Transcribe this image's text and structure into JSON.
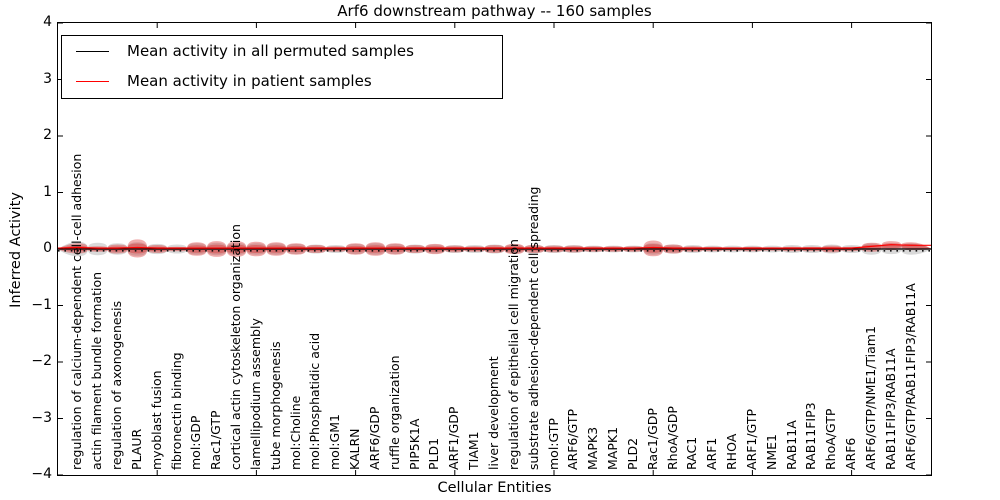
{
  "figure": {
    "title": "Arf6 downstream pathway -- 160 samples",
    "background": "#ffffff"
  },
  "legend": {
    "entries": [
      {
        "label": "Mean activity in all permuted samples",
        "color": "#000000"
      },
      {
        "label": "Mean activity in patient samples",
        "color": "#ff0000"
      }
    ]
  },
  "axes": {
    "y_title": "Inferred Activity",
    "x_title": "Cellular Entities",
    "y_tick_labels": [
      "4",
      "3",
      "2",
      "1",
      "0",
      "−1",
      "−2",
      "−3",
      "−4"
    ],
    "y_tick_values": [
      4,
      3,
      2,
      1,
      0,
      -1,
      -2,
      -3,
      -4
    ]
  },
  "chart_data": {
    "type": "violin",
    "title": "Arf6 downstream pathway -- 160 samples",
    "xlabel": "Cellular Entities",
    "ylabel": "Inferred Activity",
    "ylim": [
      -4,
      4
    ],
    "xlim": [
      0,
      44
    ],
    "grid": false,
    "legend_position": "upper left",
    "x_major_tick_positions": [
      5,
      10,
      15,
      20,
      25,
      30,
      35,
      40
    ],
    "categories": [
      "regulation of calcium-dependent cell-cell adhesion",
      "actin filament bundle formation",
      "regulation of axonogenesis",
      "PLAUR",
      "myoblast fusion",
      "fibronectin binding",
      "mol:GDP",
      "Rac1/GTP",
      "cortical actin cytoskeleton organization",
      "lamellipodium assembly",
      "tube morphogenesis",
      "mol:Choline",
      "mol:Phosphatidic acid",
      "mol:GM1",
      "KALRN",
      "ARF6/GDP",
      "ruffle organization",
      "PIP5K1A",
      "PLD1",
      "ARF1/GDP",
      "TIAM1",
      "liver development",
      "regulation of epithelial cell migration",
      "substrate adhesion-dependent cell spreading",
      "mol:GTP",
      "ARF6/GTP",
      "MAPK3",
      "MAPK1",
      "PLD2",
      "Rac1/GDP",
      "RhoA/GDP",
      "RAC1",
      "ARF1",
      "RHOA",
      "ARF1/GTP",
      "NME1",
      "RAB11A",
      "RAB11FIP3",
      "RhoA/GTP",
      "ARF6",
      "ARF6/GTP/NME1/Tiam1",
      "RAB11FIP3/RAB11A",
      "ARF6/GTP/RAB11FIP3/RAB11A"
    ],
    "series": [
      {
        "name": "Mean activity in all permuted samples",
        "color": "#000000",
        "style": "solid+dotted",
        "values": [
          0,
          0,
          0,
          0,
          0,
          0,
          0,
          0,
          0,
          0,
          0,
          0,
          0,
          0,
          0,
          0,
          0,
          0,
          0,
          0,
          0,
          0,
          0,
          0,
          0,
          0,
          0,
          0,
          0,
          0,
          0,
          0,
          0,
          0,
          0,
          0,
          0,
          0,
          0,
          0,
          0,
          0,
          0
        ]
      },
      {
        "name": "Mean activity in patient samples",
        "color": "#ff0000",
        "style": "solid",
        "values": [
          0.01,
          0,
          0,
          0.01,
          0,
          0,
          0,
          0,
          0,
          0,
          0,
          0,
          0,
          0,
          0,
          0,
          0,
          0,
          0,
          0,
          0,
          0,
          0,
          0,
          0,
          0,
          0,
          0,
          0,
          0.01,
          0,
          0,
          0,
          0,
          0,
          0,
          0,
          0,
          0,
          0,
          0.03,
          0.06,
          0.05
        ]
      }
    ],
    "violin_spread": {
      "patient_halfwidth": [
        0.09,
        0.05,
        0.08,
        0.16,
        0.07,
        0.04,
        0.12,
        0.14,
        0.14,
        0.13,
        0.12,
        0.1,
        0.07,
        0.05,
        0.1,
        0.12,
        0.1,
        0.07,
        0.09,
        0.06,
        0.05,
        0.07,
        0.09,
        0.07,
        0.06,
        0.06,
        0.05,
        0.05,
        0.05,
        0.14,
        0.08,
        0.05,
        0.04,
        0.03,
        0.04,
        0.03,
        0.04,
        0.04,
        0.06,
        0.04,
        0.08,
        0.08,
        0.07
      ],
      "permuted_halfwidth": [
        0.13,
        0.11,
        0.1,
        0.12,
        0.09,
        0.08,
        0.1,
        0.11,
        0.11,
        0.1,
        0.1,
        0.09,
        0.08,
        0.07,
        0.09,
        0.1,
        0.09,
        0.08,
        0.08,
        0.07,
        0.07,
        0.08,
        0.08,
        0.07,
        0.07,
        0.07,
        0.06,
        0.06,
        0.06,
        0.1,
        0.08,
        0.07,
        0.06,
        0.06,
        0.06,
        0.06,
        0.07,
        0.07,
        0.08,
        0.07,
        0.1,
        0.09,
        0.1
      ],
      "patient_fill": "rgba(214,39,40,0.38)",
      "permuted_fill": "rgba(128,128,128,0.30)"
    }
  }
}
